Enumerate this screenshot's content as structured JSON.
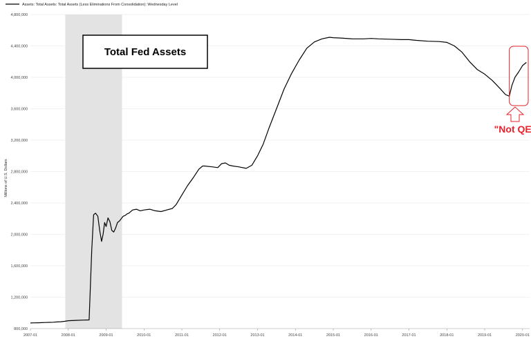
{
  "chart_data": {
    "type": "line",
    "legend": "Assets: Total Assets: Total Assets (Less Eliminations From Consolidation): Wednesday Level",
    "ylabel": "Millions of U.S. Dollars",
    "xlabel": "",
    "title_box": "Total Fed Assets",
    "annotation": "\"Not QE\"",
    "colors": {
      "line": "#000000",
      "recession": "#e3e3e3",
      "annotation": "#e8222a"
    },
    "ylim": [
      800000,
      4650000
    ],
    "y_ticks": [
      800000,
      1200000,
      1600000,
      2000000,
      2400000,
      2800000,
      3200000,
      3600000,
      4000000,
      4400000,
      4800000
    ],
    "y_tick_labels": [
      "800,000",
      "1,200,000",
      "1,600,000",
      "2,000,000",
      "2,400,000",
      "2,800,000",
      "3,200,000",
      "3,600,000",
      "4,000,000",
      "4,400,000",
      "4,800,000"
    ],
    "x_ticks": [
      "2007-01",
      "2008-01",
      "2009-01",
      "2010-01",
      "2011-01",
      "2012-01",
      "2013-01",
      "2014-01",
      "2015-01",
      "2016-01",
      "2017-01",
      "2018-01",
      "2019-01",
      "2020-01"
    ],
    "xlim": [
      2007.0,
      2020.15
    ],
    "recession": {
      "start": 2007.92,
      "end": 2009.42
    },
    "highlight_box": {
      "start": 2019.65,
      "end": 2020.15
    },
    "series": [
      {
        "x": [
          2007.0,
          2007.1,
          2007.2,
          2007.3,
          2007.4,
          2007.5,
          2007.6,
          2007.7,
          2007.8,
          2007.9,
          2008.0,
          2008.2,
          2008.4,
          2008.55,
          2008.62,
          2008.67,
          2008.72,
          2008.78,
          2008.83,
          2008.88,
          2008.92,
          2008.96,
          2009.0,
          2009.05,
          2009.1,
          2009.15,
          2009.2,
          2009.25,
          2009.3,
          2009.35,
          2009.4,
          2009.45,
          2009.5,
          2009.55,
          2009.6,
          2009.7,
          2009.8,
          2009.9,
          2010.0,
          2010.15,
          2010.3,
          2010.45,
          2010.6,
          2010.75,
          2010.85,
          2011.0,
          2011.15,
          2011.3,
          2011.45,
          2011.55,
          2011.6,
          2011.8,
          2011.95,
          2012.05,
          2012.15,
          2012.25,
          2012.35,
          2012.5,
          2012.7,
          2012.85,
          2013.0,
          2013.15,
          2013.3,
          2013.5,
          2013.7,
          2013.9,
          2014.1,
          2014.3,
          2014.5,
          2014.7,
          2014.9,
          2015.0,
          2015.2,
          2015.5,
          2015.8,
          2016.0,
          2016.2,
          2016.5,
          2016.8,
          2017.0,
          2017.2,
          2017.5,
          2017.8,
          2018.0,
          2018.2,
          2018.4,
          2018.6,
          2018.8,
          2019.0,
          2019.2,
          2019.4,
          2019.55,
          2019.65,
          2019.72,
          2019.8,
          2019.9,
          2020.0,
          2020.1
        ],
        "values": [
          871000,
          873000,
          874000,
          876000,
          877000,
          879000,
          881000,
          884000,
          887000,
          892000,
          900000,
          905000,
          908000,
          910000,
          1800000,
          2250000,
          2270000,
          2230000,
          2050000,
          1910000,
          2000000,
          2150000,
          2100000,
          2210000,
          2160000,
          2050000,
          2030000,
          2080000,
          2150000,
          2170000,
          2200000,
          2230000,
          2240000,
          2260000,
          2270000,
          2310000,
          2320000,
          2300000,
          2310000,
          2320000,
          2300000,
          2290000,
          2310000,
          2330000,
          2380000,
          2500000,
          2620000,
          2720000,
          2830000,
          2870000,
          2870000,
          2860000,
          2850000,
          2900000,
          2910000,
          2880000,
          2870000,
          2860000,
          2840000,
          2880000,
          3000000,
          3150000,
          3350000,
          3600000,
          3850000,
          4050000,
          4220000,
          4370000,
          4450000,
          4490000,
          4510000,
          4505000,
          4500000,
          4490000,
          4490000,
          4495000,
          4490000,
          4485000,
          4480000,
          4480000,
          4470000,
          4460000,
          4455000,
          4445000,
          4400000,
          4320000,
          4200000,
          4100000,
          4040000,
          3960000,
          3860000,
          3780000,
          3760000,
          3900000,
          4000000,
          4070000,
          4150000,
          4190000
        ]
      }
    ]
  }
}
